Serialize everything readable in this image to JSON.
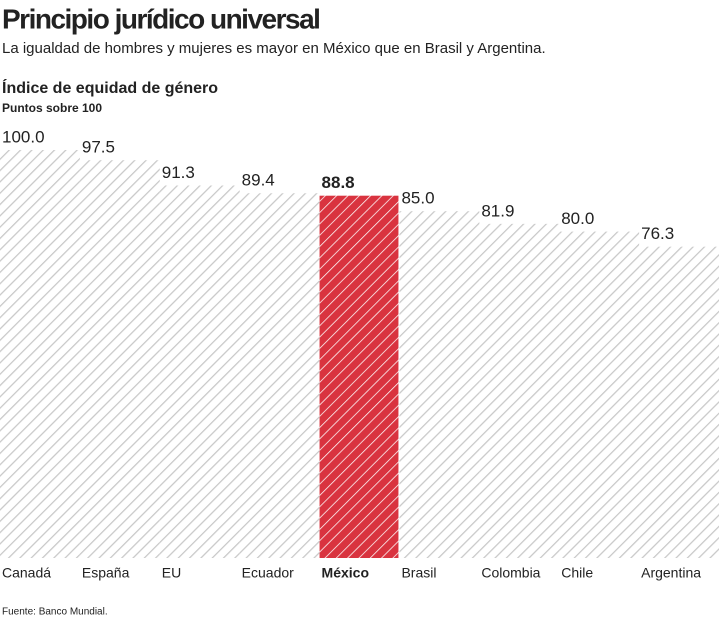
{
  "chart_data": {
    "type": "bar",
    "title": "Principio jurídico universal",
    "subtitle": "La igualdad de hombres y mujeres es mayor en México que en Brasil y Argentina.",
    "y_label": "Índice de equidad de género",
    "y_unit": "Puntos sobre 100",
    "source": "Fuente: Banco Mundial.",
    "categories": [
      "Canadá",
      "España",
      "EU",
      "Ecuador",
      "México",
      "Brasil",
      "Colombia",
      "Chile",
      "Argentina"
    ],
    "values": [
      100,
      97.5,
      91.3,
      89.4,
      88.8,
      85,
      81.9,
      80,
      76.3
    ],
    "value_labels": [
      "100.0",
      "97.5",
      "91.3",
      "89.4",
      "88.8",
      "85.0",
      "81.9",
      "80.0",
      "76.3"
    ],
    "color": "#c8c8c8",
    "colors": [
      "#c8c8c8",
      "#c8c8c8",
      "#c8c8c8",
      "#c8c8c8",
      "#d9333f",
      "#c8c8c8",
      "#c8c8c8",
      "#c8c8c8",
      "#c8c8c8"
    ],
    "ylim": [
      0,
      100
    ]
  }
}
